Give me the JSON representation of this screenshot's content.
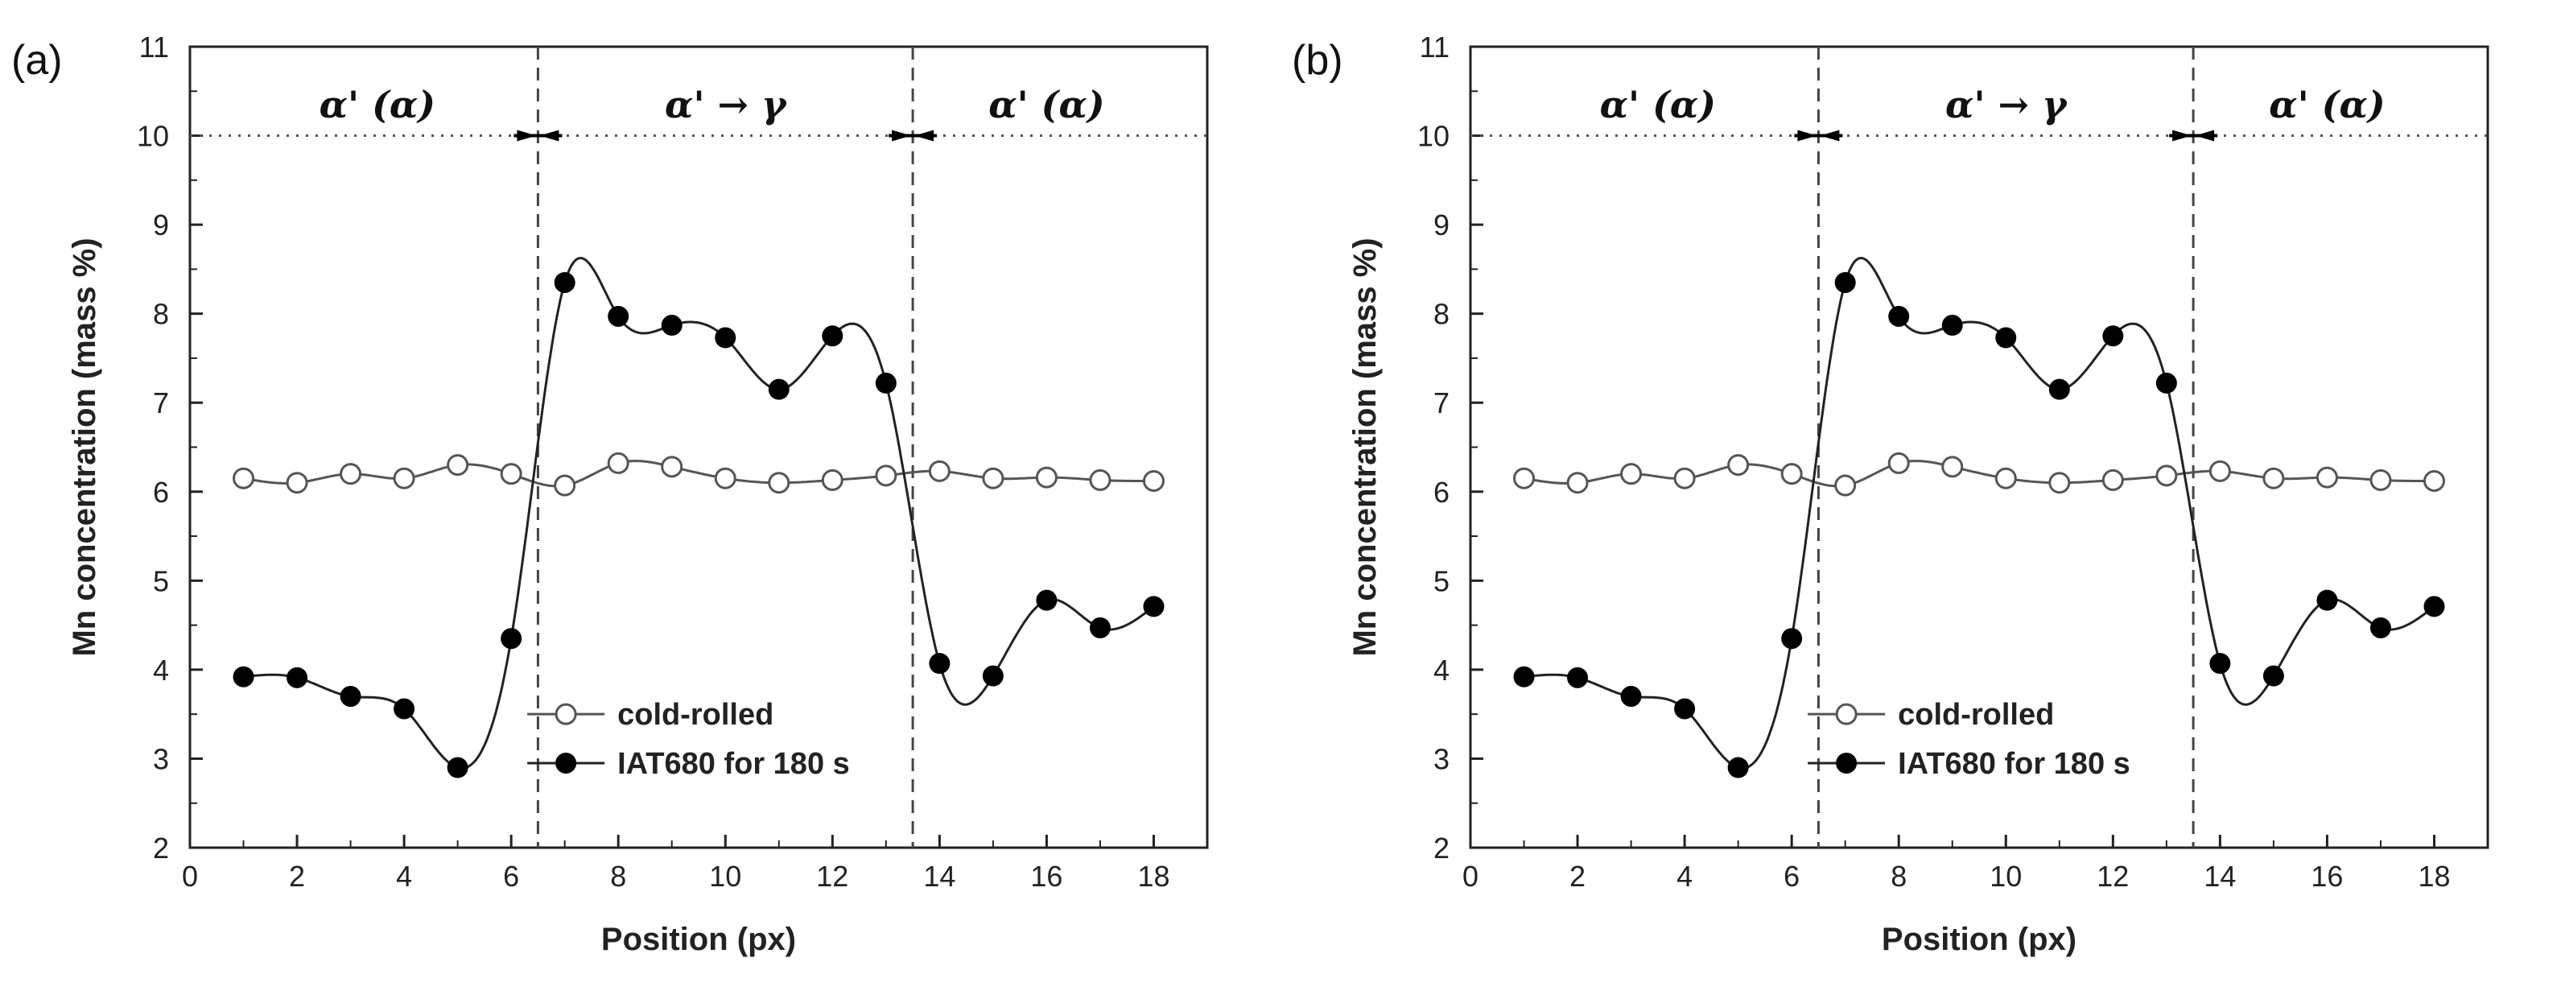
{
  "chart_data": [
    {
      "panel_label": "(a)",
      "type": "line",
      "xlabel": "Position (px)",
      "ylabel": "Mn concentration (mass %)",
      "xlim": [
        0,
        19
      ],
      "ylim": [
        2,
        11
      ],
      "xticks": [
        "0",
        "2",
        "4",
        "6",
        "8",
        "10",
        "12",
        "14",
        "16",
        "18"
      ],
      "yticks": [
        "2",
        "3",
        "4",
        "5",
        "6",
        "7",
        "8",
        "9",
        "10",
        "11"
      ],
      "x": [
        1,
        2,
        3,
        4,
        5,
        6,
        7,
        8,
        9,
        10,
        11,
        12,
        13,
        14,
        15,
        16,
        17,
        18
      ],
      "series": [
        {
          "name": "cold-rolled",
          "marker": "open-circle",
          "values": [
            6.15,
            6.1,
            6.2,
            6.15,
            6.3,
            6.2,
            6.07,
            6.32,
            6.28,
            6.15,
            6.1,
            6.13,
            6.18,
            6.23,
            6.15,
            6.16,
            6.13,
            6.12
          ]
        },
        {
          "name": "IAT680 for 180 s",
          "marker": "filled-circle",
          "values": [
            3.92,
            3.91,
            3.7,
            3.56,
            2.9,
            4.35,
            8.35,
            7.97,
            7.87,
            7.73,
            7.15,
            7.75,
            7.22,
            4.07,
            3.93,
            4.78,
            4.47,
            4.71
          ]
        }
      ],
      "reference_line": {
        "y": 10,
        "style": "dotted"
      },
      "boundaries": [
        6.5,
        13.5
      ],
      "region_labels": [
        "α' (α)",
        "α' → γ",
        "α' (α)"
      ],
      "legend_position": "bottom-center"
    },
    {
      "panel_label": "(b)",
      "type": "line",
      "xlabel": "Position (px)",
      "ylabel": "Mn concentration (mass %)",
      "xlim": [
        0,
        19
      ],
      "ylim": [
        2,
        11
      ],
      "xticks": [
        "0",
        "2",
        "4",
        "6",
        "8",
        "10",
        "12",
        "14",
        "16",
        "18"
      ],
      "yticks": [
        "2",
        "3",
        "4",
        "5",
        "6",
        "7",
        "8",
        "9",
        "10",
        "11"
      ],
      "x": [
        1,
        2,
        3,
        4,
        5,
        6,
        7,
        8,
        9,
        10,
        11,
        12,
        13,
        14,
        15,
        16,
        17,
        18
      ],
      "series": [
        {
          "name": "cold-rolled",
          "marker": "open-circle",
          "values": [
            6.15,
            6.1,
            6.2,
            6.15,
            6.3,
            6.2,
            6.07,
            6.32,
            6.28,
            6.15,
            6.1,
            6.13,
            6.18,
            6.23,
            6.15,
            6.16,
            6.13,
            6.12
          ]
        },
        {
          "name": "IAT680 for 180 s",
          "marker": "filled-circle",
          "values": [
            3.92,
            3.91,
            3.7,
            3.56,
            2.9,
            4.35,
            8.35,
            7.97,
            7.87,
            7.73,
            7.15,
            7.75,
            7.22,
            4.07,
            3.93,
            4.78,
            4.47,
            4.71
          ]
        }
      ],
      "reference_line": {
        "y": 10,
        "style": "dotted"
      },
      "boundaries": [
        6.5,
        13.5
      ],
      "region_labels": [
        "α' (α)",
        "α' → γ",
        "α' (α)"
      ],
      "legend_position": "bottom-center"
    }
  ],
  "colors": {
    "axis": "#222222",
    "open_marker_stroke": "#555555",
    "filled_marker": "#000000",
    "cold_line": "#555555",
    "iat_line": "#222222"
  }
}
